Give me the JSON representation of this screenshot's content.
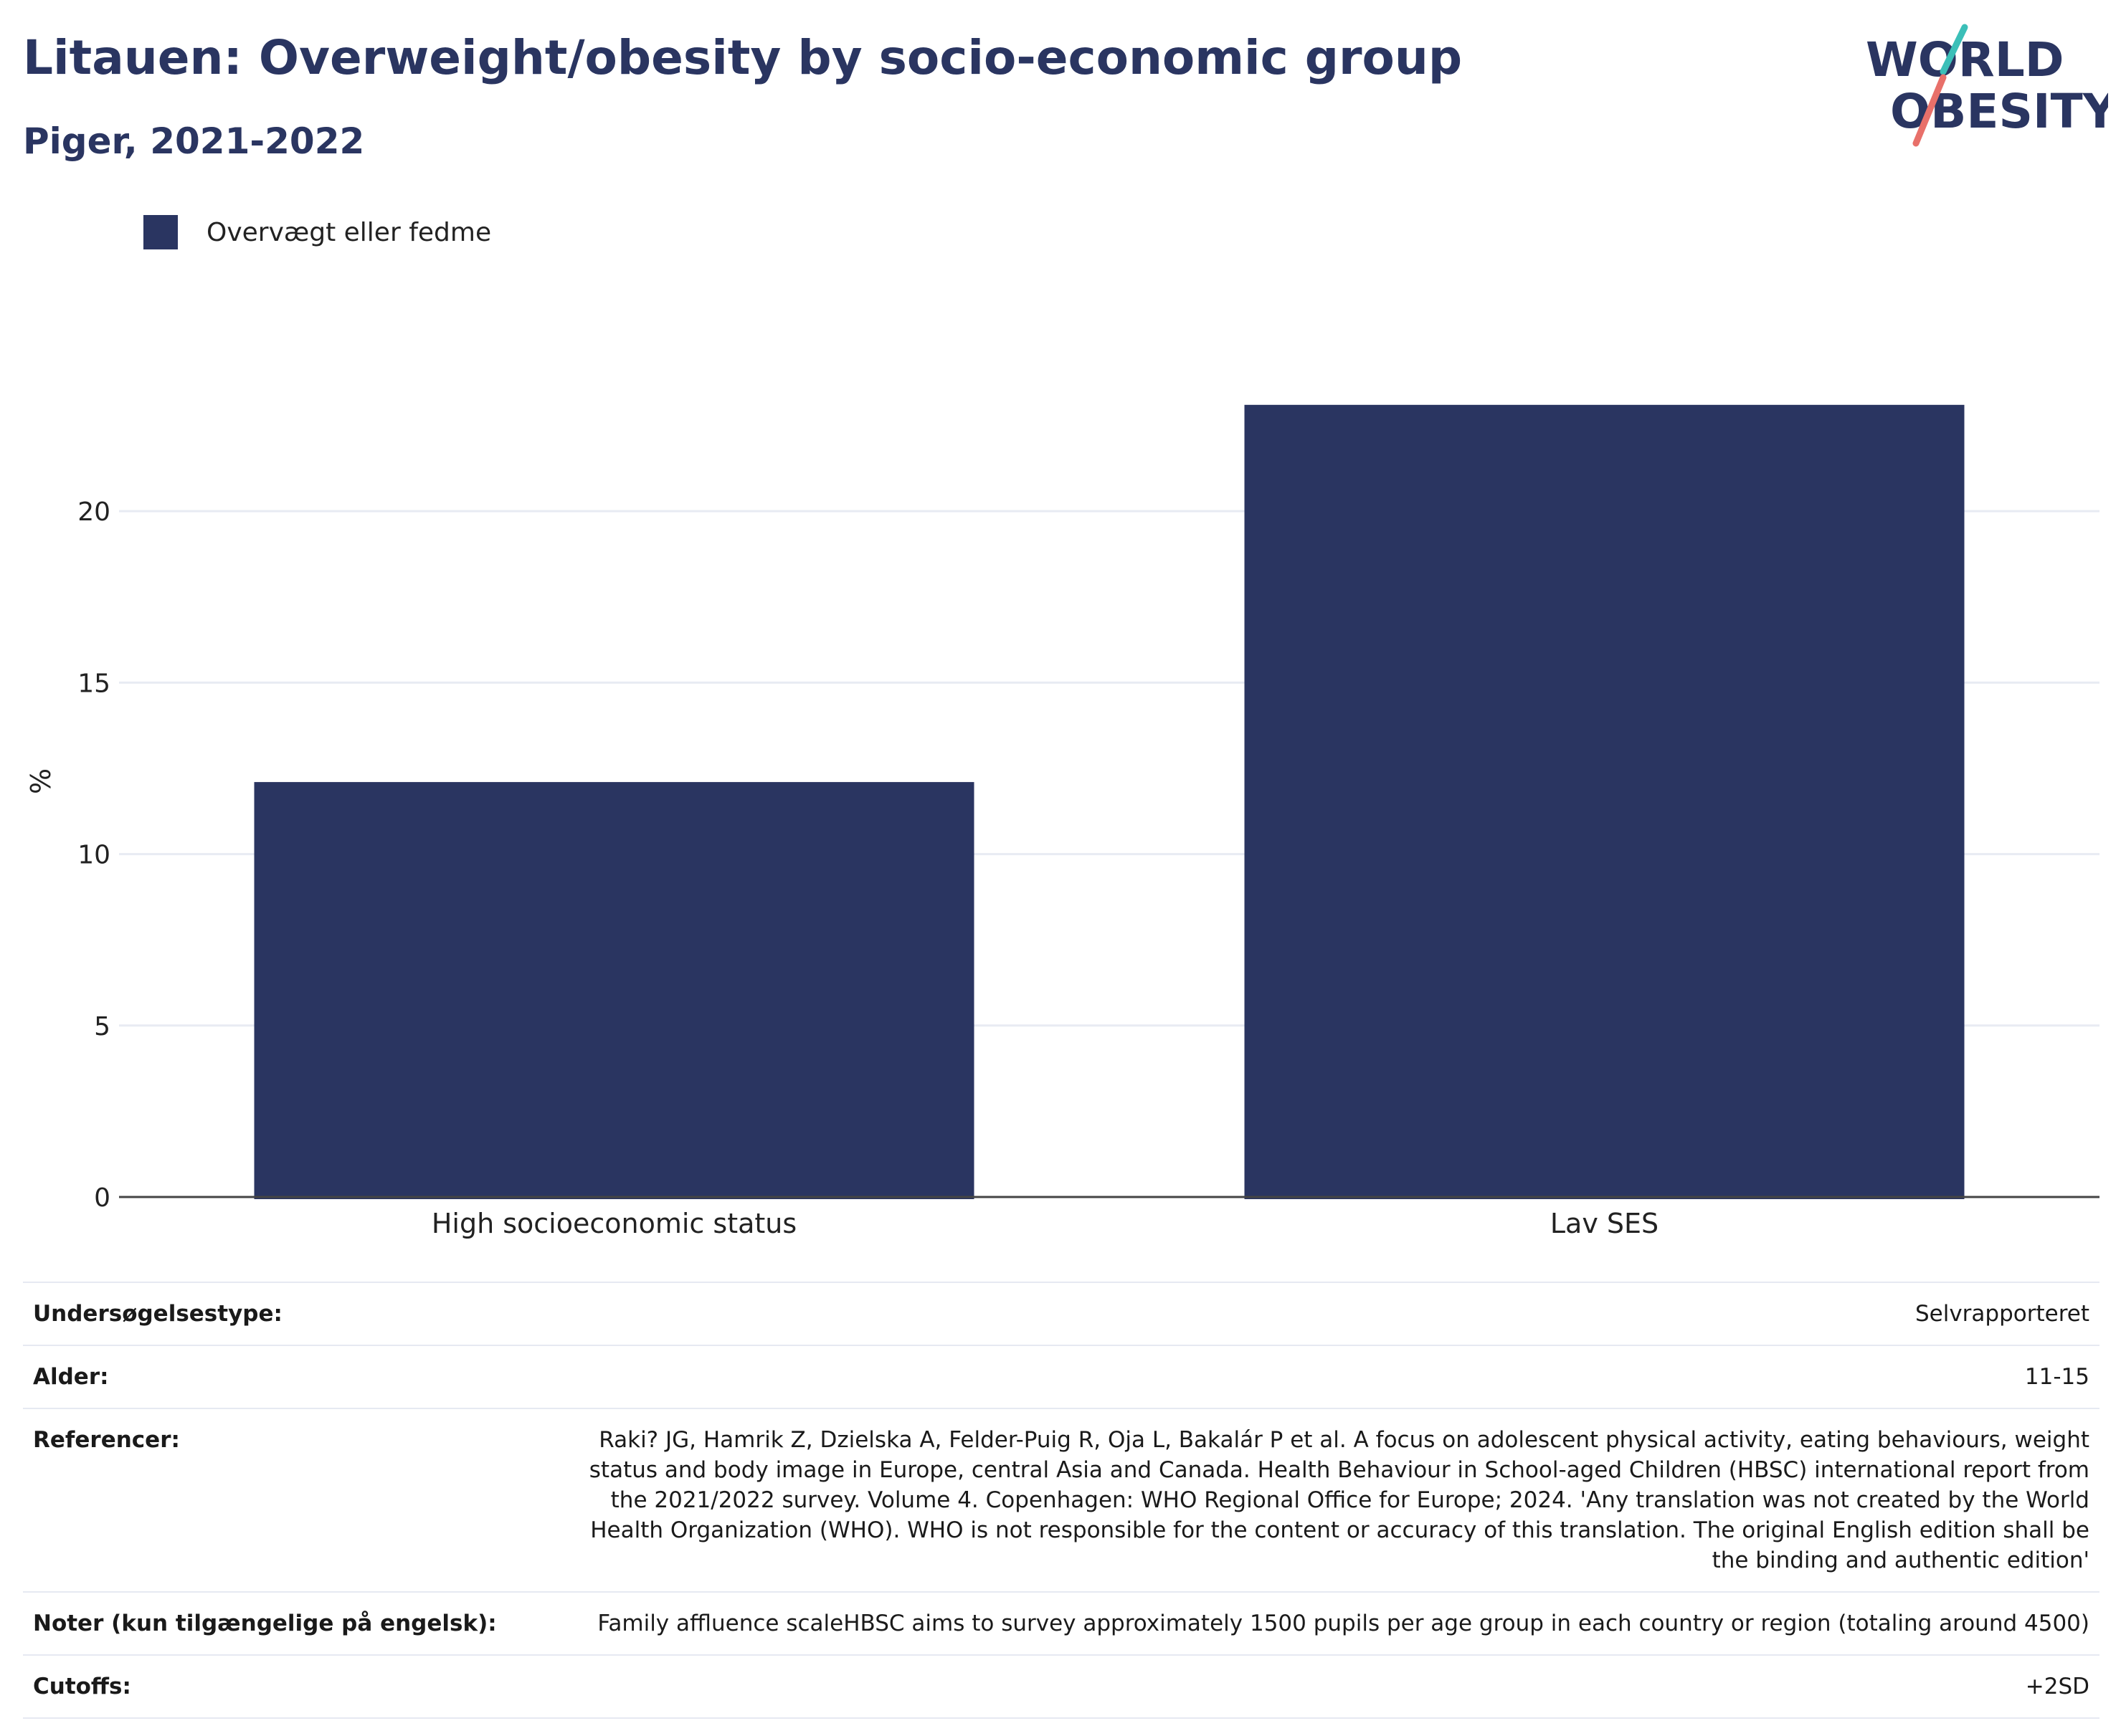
{
  "header": {
    "title": "Litauen: Overweight/obesity by socio-economic group",
    "subtitle": "Piger, 2021-2022",
    "logo_text": [
      "WORLD",
      "OBESITY"
    ]
  },
  "legend": {
    "label": "Overvægt eller fedme",
    "color": "#2a3561"
  },
  "chart_data": {
    "type": "bar",
    "title": "Litauen: Overweight/obesity by socio-economic group",
    "subtitle": "Piger, 2021-2022",
    "categories": [
      "High socioeconomic status",
      "Lav SES"
    ],
    "series": [
      {
        "name": "Overvægt eller fedme",
        "values": [
          12.1,
          23.1
        ],
        "color": "#2a3561"
      }
    ],
    "xlabel": "",
    "ylabel": "%",
    "ylim": [
      0,
      25.5
    ],
    "yticks": [
      0,
      5,
      10,
      15,
      20
    ],
    "grid": true,
    "legend_position": "top-left"
  },
  "info": {
    "rows": [
      {
        "key": "Undersøgelsestype:",
        "value": "Selvrapporteret"
      },
      {
        "key": "Alder:",
        "value": "11-15"
      },
      {
        "key": "Referencer:",
        "value": "Raki? JG, Hamrik Z, Dzielska A, Felder-Puig R, Oja L, Bakalár P et al. A focus on adolescent physical activity, eating behaviours, weight status and body image in Europe, central Asia and Canada. Health Behaviour in School-aged Children (HBSC) international report from the 2021/2022 survey. Volume 4. Copenhagen: WHO Regional Office for Europe; 2024. 'Any translation was not created by the World Health Organization (WHO). WHO is not responsible for the content or accuracy of this translation. The original English edition shall be the binding and authentic edition'"
      },
      {
        "key": "Noter (kun tilgængelige på engelsk):",
        "value": "Family affluence scaleHBSC aims to survey approximately 1500 pupils per age group in each country or region (totaling around 4500)"
      },
      {
        "key": "Cutoffs:",
        "value": "+2SD"
      }
    ]
  }
}
